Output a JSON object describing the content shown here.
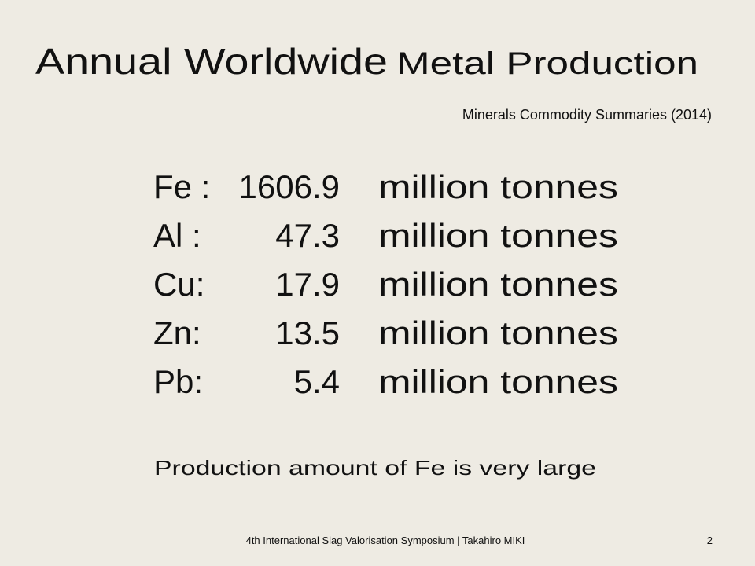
{
  "header": {
    "title": [
      "Annual Worldwide",
      "Metal Production"
    ],
    "source": "Minerals Commodity Summaries (2014)"
  },
  "rows": [
    {
      "label": "Fe :",
      "value": 1606.9,
      "unit": "million tonnes"
    },
    {
      "label": "Al :",
      "value": 47.3,
      "unit": "million tonnes"
    },
    {
      "label": "Cu:",
      "value": 17.9,
      "unit": "million tonnes"
    },
    {
      "label": "Zn:",
      "value": 13.5,
      "unit": "million tonnes"
    },
    {
      "label": "Pb:",
      "value": 5.4,
      "unit": "million tonnes"
    }
  ],
  "note": "Production amount of Fe is very large",
  "footer": {
    "text": "4th International Slag Valorisation Symposium | Takahiro MIKI",
    "page": "2"
  }
}
